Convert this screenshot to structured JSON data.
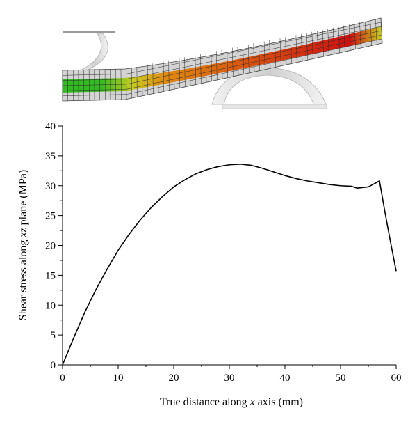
{
  "chart_data": {
    "type": "line",
    "title": "",
    "xlabel_parts": [
      "True distance along ",
      "x",
      " axis (mm)"
    ],
    "ylabel_parts": [
      "Shear stress along ",
      "xz",
      " plane (MPa)"
    ],
    "xlim": [
      0,
      60
    ],
    "ylim": [
      0,
      40
    ],
    "xticks": [
      0,
      10,
      20,
      30,
      40,
      50,
      60
    ],
    "yticks": [
      0,
      5,
      10,
      15,
      20,
      25,
      30,
      35,
      40
    ],
    "grid": false,
    "legend": "none",
    "series": [
      {
        "color": "#000000",
        "x": [
          0,
          2,
          4,
          6,
          8,
          10,
          12,
          14,
          16,
          18,
          20,
          22,
          24,
          26,
          28,
          30,
          32,
          34,
          36,
          38,
          40,
          42,
          44,
          46,
          48,
          50,
          52,
          53,
          54,
          55,
          56,
          57,
          58,
          59,
          60
        ],
        "y": [
          0,
          4.5,
          8.8,
          12.6,
          16.0,
          19.2,
          21.9,
          24.3,
          26.4,
          28.2,
          29.8,
          31.0,
          32.0,
          32.7,
          33.2,
          33.5,
          33.6,
          33.4,
          32.9,
          32.3,
          31.7,
          31.2,
          30.8,
          30.5,
          30.2,
          30.0,
          29.9,
          29.6,
          29.7,
          29.8,
          30.3,
          30.8,
          25.5,
          20.5,
          15.7
        ]
      }
    ]
  },
  "illustration": {
    "colors": {
      "beam_outer": "#d6d6d6",
      "mesh": "#333333",
      "core_green": "#33bb22",
      "core_yellow": "#c8cc22",
      "core_orange": "#e08a10",
      "core_red": "#cc1111",
      "support": "#dddddd"
    }
  }
}
